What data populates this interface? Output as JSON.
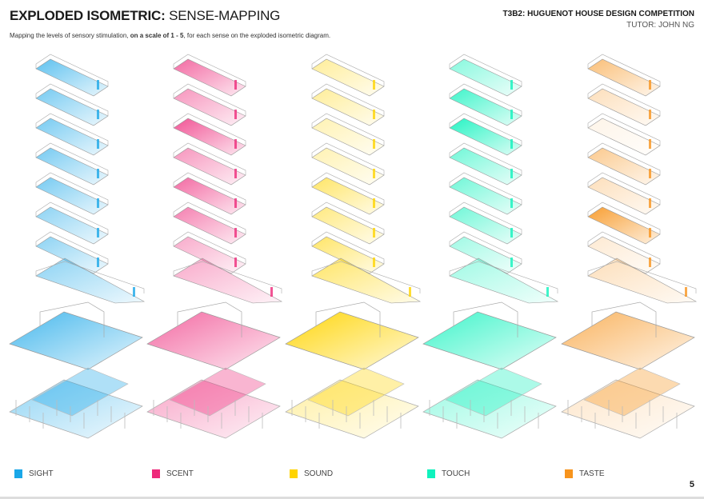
{
  "header": {
    "title_bold": "EXPLODED ISOMETRIC:",
    "title_rest": "SENSE-MAPPING",
    "subtitle_pre": "Mapping the levels of sensory stimulation, ",
    "subtitle_bold": "on a scale of 1 - 5",
    "subtitle_post": ", for each sense on the exploded isometric diagram.",
    "project": "T3B2: HUGUENOT HOUSE DESIGN COMPETITION",
    "tutor": "TUTOR: JOHN NG"
  },
  "senses": [
    {
      "label": "SIGHT",
      "color": "#1aa7e8"
    },
    {
      "label": "SCENT",
      "color": "#ee2a7b"
    },
    {
      "label": "SOUND",
      "color": "#ffd400"
    },
    {
      "label": "TOUCH",
      "color": "#10f2bd"
    },
    {
      "label": "TASTE",
      "color": "#f7941d"
    }
  ],
  "page_number": "5"
}
